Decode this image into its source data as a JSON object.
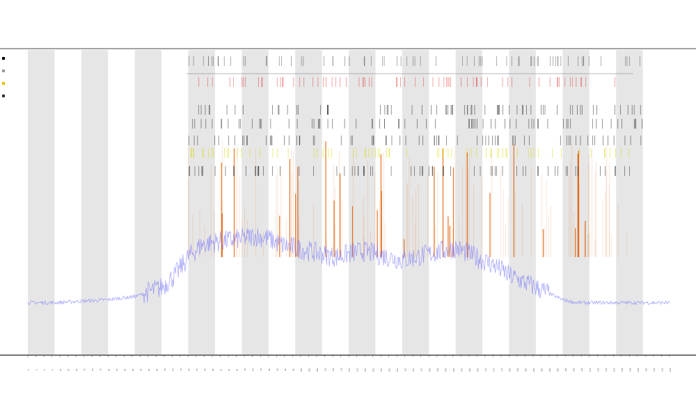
{
  "chart_data": {
    "type": "line",
    "title": "",
    "subtitle": [],
    "xlabel": "",
    "ylabel": "",
    "x_range": [
      0,
      240
    ],
    "ylim": [
      0,
      100
    ],
    "grid": false,
    "legend_position": "top-left",
    "legend": [
      {
        "label": "",
        "color": "#000000"
      },
      {
        "label": "",
        "color": "#999999"
      },
      {
        "label": "",
        "color": "#e0c000"
      },
      {
        "label": "",
        "color": "#333333"
      }
    ],
    "annotation_tracks": [
      {
        "name": "",
        "color": "#555555"
      },
      {
        "name": "",
        "color": "#e04040"
      },
      {
        "name": "",
        "color": "#222222"
      },
      {
        "name": "",
        "color": "#222222"
      },
      {
        "name": "",
        "color": "#222222"
      },
      {
        "name": "",
        "color": "#d8d800"
      },
      {
        "name": "",
        "color": "#222222"
      }
    ],
    "series": [
      {
        "color": "#6b6bff",
        "x": [
          0,
          10,
          20,
          30,
          40,
          50,
          55,
          60,
          65,
          70,
          75,
          80,
          85,
          90,
          95,
          100,
          105,
          110,
          115,
          120,
          125,
          130,
          135,
          140,
          145,
          150,
          155,
          160,
          165,
          170,
          175,
          180,
          185,
          190,
          195,
          200,
          205,
          210,
          220,
          230,
          240
        ],
        "values": [
          17,
          17,
          17.5,
          18,
          19,
          22,
          26,
          32,
          36,
          37,
          37.5,
          38,
          39,
          38,
          36,
          35,
          34,
          33,
          32,
          33,
          34,
          33,
          32,
          31,
          32,
          33,
          34,
          35,
          33,
          31,
          29,
          26,
          24,
          22,
          20,
          18,
          17,
          17,
          17,
          17,
          17
        ]
      }
    ],
    "spike_series": {
      "color": "#e05a00",
      "peak": 70
    },
    "shaded_bands": [
      [
        0,
        10
      ],
      [
        20,
        30
      ],
      [
        40,
        50
      ],
      [
        60,
        70
      ],
      [
        80,
        90
      ],
      [
        100,
        110
      ],
      [
        120,
        130
      ],
      [
        140,
        150
      ],
      [
        160,
        170
      ],
      [
        180,
        190
      ],
      [
        200,
        210
      ],
      [
        220,
        230
      ]
    ],
    "band_color": "#e6e6e6"
  }
}
